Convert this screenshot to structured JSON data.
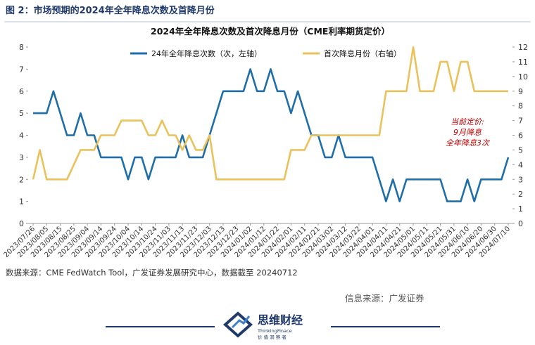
{
  "header": "图 2：市场预期的2024年全年降息次数及首降月份",
  "chart_data": {
    "type": "line",
    "title": "2024年全年降息次数及首次降息月份（CME利率期货定价）",
    "categories": [
      "2023/07/26",
      null,
      "2023/08/05",
      null,
      "2023/08/15",
      null,
      "2023/08/25",
      null,
      "2023/09/04",
      null,
      "2023/09/14",
      null,
      "2023/09/24",
      null,
      "2023/10/04",
      null,
      "2023/10/14",
      null,
      "2023/10/24",
      null,
      "2023/11/03",
      null,
      "2023/11/13",
      null,
      "2023/11/23",
      null,
      "2023/12/03",
      null,
      "2023/12/13",
      null,
      "2023/12/23",
      null,
      "2024/01/02",
      null,
      "2024/01/12",
      null,
      "2024/01/22",
      null,
      "2024/02/01",
      null,
      "2024/02/11",
      null,
      "2024/02/21",
      null,
      "2024/03/02",
      null,
      "2024/03/12",
      null,
      "2024/03/22",
      null,
      "2024/04/01",
      null,
      "2024/04/11",
      null,
      "2024/04/21",
      null,
      "2024/05/01",
      null,
      "2024/05/11",
      null,
      "2024/05/21",
      null,
      "2024/05/31",
      null,
      "2024/06/10",
      null,
      "2024/06/20",
      null,
      "2024/06/30",
      null,
      "2024/07/10"
    ],
    "series": [
      {
        "name": "24年全年降息次数（次，左轴）",
        "color": "#1f6ea8",
        "axis": "y",
        "values": [
          5,
          5,
          5,
          6,
          5,
          4,
          4,
          5,
          4,
          4,
          3,
          3,
          3,
          3,
          2,
          3,
          3,
          2,
          3,
          3,
          3,
          3,
          4,
          3,
          3,
          3,
          4,
          5,
          6,
          6,
          6,
          6,
          7,
          6,
          6,
          7,
          6,
          6,
          5,
          6,
          5,
          4,
          4,
          3,
          3,
          4,
          3,
          3,
          3,
          3,
          3,
          2,
          1,
          2,
          1,
          2,
          2,
          2,
          2,
          2,
          2,
          1,
          1,
          1,
          2,
          1,
          2,
          2,
          2,
          2,
          3
        ]
      },
      {
        "name": "首次降息月份（右轴）",
        "color": "#e9c25c",
        "axis": "y2",
        "values": [
          3,
          5,
          3,
          3,
          3,
          3,
          4,
          5,
          5,
          5,
          6,
          6,
          6,
          7,
          7,
          7,
          7,
          6,
          6,
          7,
          6,
          6,
          5,
          6,
          5,
          5,
          6,
          3,
          3,
          3,
          3,
          3,
          3,
          3,
          3,
          3,
          3,
          3,
          5,
          5,
          5,
          6,
          6,
          6,
          6,
          6,
          6,
          6,
          6,
          6,
          6,
          6,
          9,
          9,
          9,
          9,
          12,
          9,
          9,
          9,
          11,
          11,
          9,
          11,
          11,
          9,
          9,
          9,
          9,
          9,
          9
        ]
      }
    ],
    "ylim": [
      0,
      8
    ],
    "yticks": [
      0,
      1,
      2,
      3,
      4,
      5,
      6,
      7,
      8
    ],
    "y2lim": [
      0,
      12
    ],
    "y2ticks": [
      0,
      1,
      2,
      3,
      4,
      5,
      6,
      7,
      8,
      9,
      10,
      11,
      12
    ],
    "annotation": [
      "当前定价:",
      "9月降息",
      "全年降息3次"
    ],
    "source": "数据来源：CME FedWatch Tool，广发证券发展研究中心，数据截至 20240712"
  },
  "info_source": "信息来源：广发证券",
  "logo": {
    "name": "思维财经",
    "english": "ThinkingFinace",
    "slogan": "价 值 洞 察 者"
  }
}
